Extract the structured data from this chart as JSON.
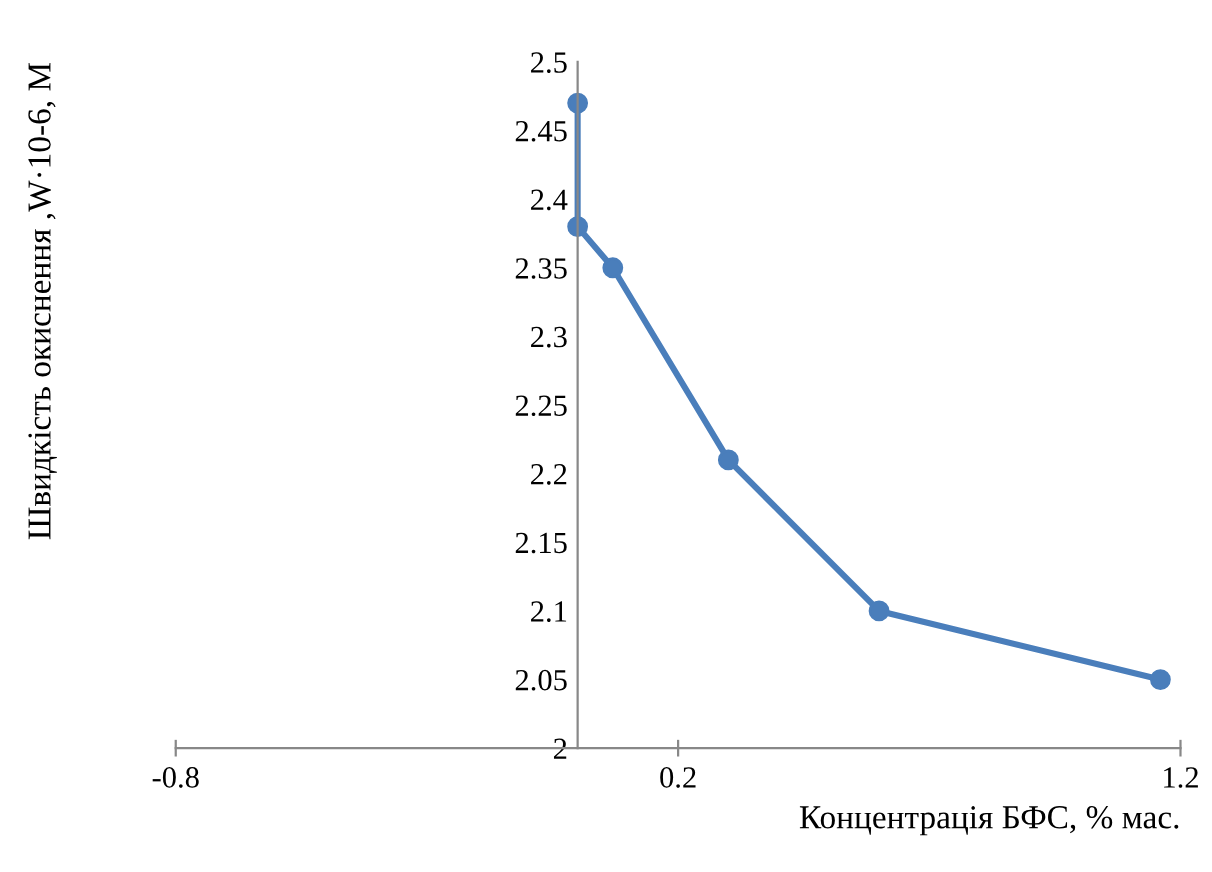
{
  "chart_data": {
    "type": "line",
    "xlabel": "Концентрація БФС, % мас.",
    "ylabel": "Швидкість окиснення ,W·10-6, М",
    "x": [
      0,
      0,
      0.07,
      0.3,
      0.6,
      1.16
    ],
    "series": [
      {
        "color": "#4a7ebb",
        "values": [
          2.47,
          2.38,
          2.35,
          2.21,
          2.1,
          2.05
        ]
      }
    ],
    "xlim": [
      -0.8,
      1.2
    ],
    "xticks": [
      -0.8,
      0.2,
      1.2
    ],
    "ylim": [
      2,
      2.5
    ],
    "yticks": [
      2,
      2.05,
      2.1,
      2.15,
      2.2,
      2.25,
      2.3,
      2.35,
      2.4,
      2.45,
      2.5
    ],
    "marker": "circle",
    "line_style": "solid",
    "grid": false,
    "legend": false
  }
}
